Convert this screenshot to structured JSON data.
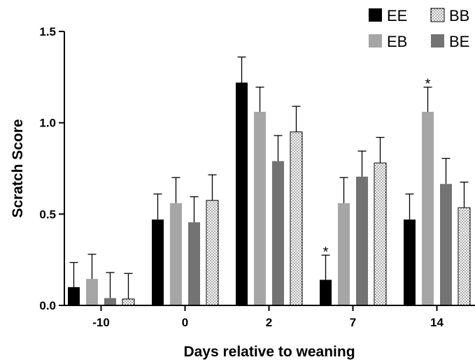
{
  "chart_data": {
    "type": "bar",
    "xlabel": "Days relative to weaning",
    "ylabel": "Scratch  Score",
    "ylim": [
      0,
      1.5
    ],
    "yticks": [
      "0.0",
      "0.5",
      "1.0",
      "1.5"
    ],
    "categories": [
      "-10",
      "0",
      "2",
      "7",
      "14"
    ],
    "legend_position": "top-right",
    "series": [
      {
        "name": "EE",
        "values": [
          0.1,
          0.47,
          1.22,
          0.14,
          0.47
        ],
        "errors": [
          0.135,
          0.14,
          0.14,
          0.135,
          0.14
        ],
        "color": "#000000",
        "pattern": "solid"
      },
      {
        "name": "EB",
        "values": [
          0.145,
          0.56,
          1.06,
          0.56,
          1.06
        ],
        "errors": [
          0.135,
          0.14,
          0.135,
          0.14,
          0.135
        ],
        "color": "#a6a6a6",
        "pattern": "solid"
      },
      {
        "name": "BE",
        "values": [
          0.04,
          0.455,
          0.79,
          0.705,
          0.665
        ],
        "errors": [
          0.14,
          0.14,
          0.14,
          0.14,
          0.14
        ],
        "color": "#737373",
        "pattern": "solid"
      },
      {
        "name": "BB",
        "values": [
          0.035,
          0.575,
          0.95,
          0.78,
          0.535
        ],
        "errors": [
          0.14,
          0.14,
          0.14,
          0.14,
          0.14
        ],
        "color": "#ffffff",
        "pattern": "dotted"
      }
    ],
    "annotations": [
      {
        "text": "*",
        "category": "7",
        "series": "EE"
      },
      {
        "text": "*",
        "category": "14",
        "series": "EB"
      }
    ]
  }
}
